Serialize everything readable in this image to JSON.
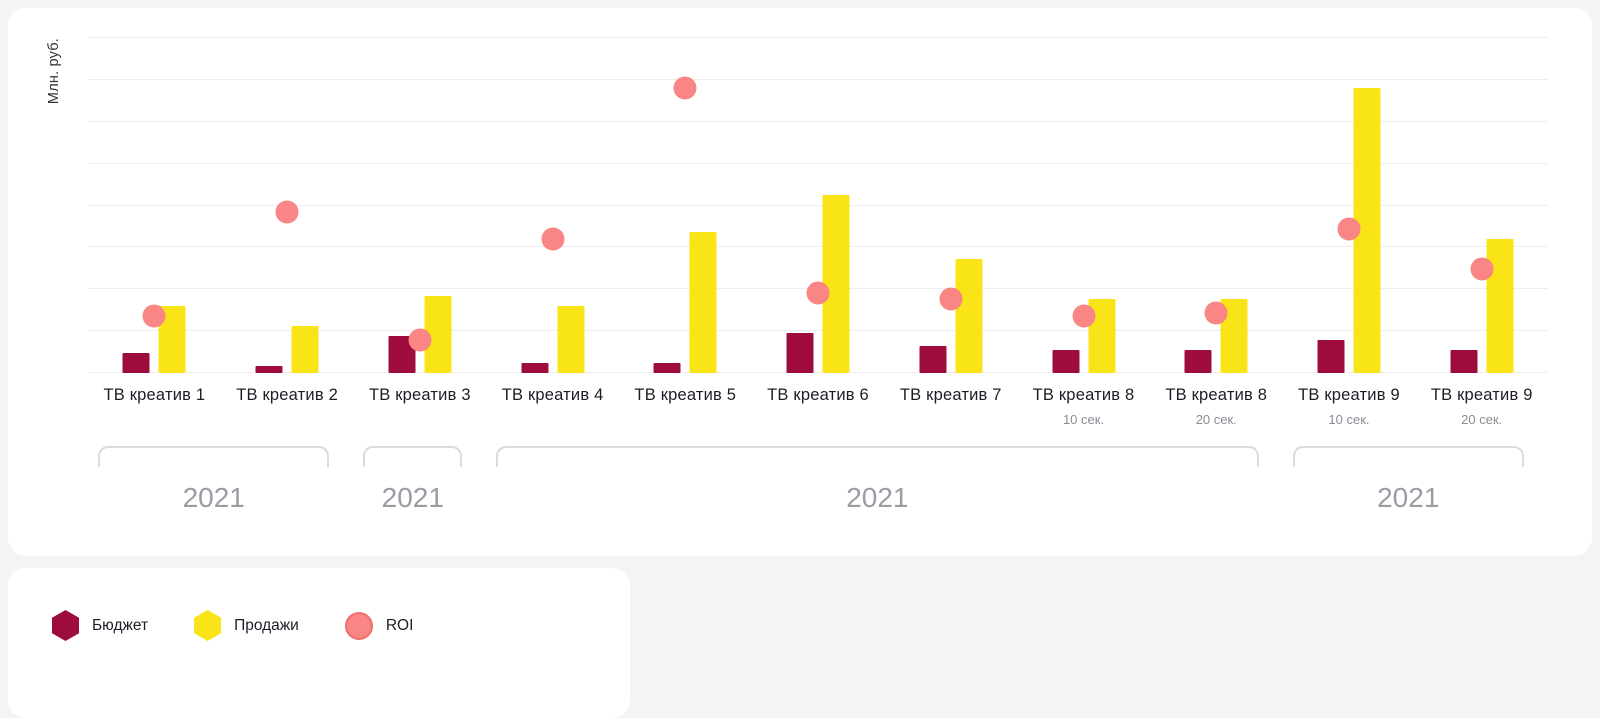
{
  "chart_data": {
    "type": "bar",
    "title": "",
    "xlabel": "",
    "ylabel": "Млн. руб.",
    "ylim": [
      0,
      100
    ],
    "grid": true,
    "gridline_step": 12.5,
    "legend_position": "bottom-left",
    "categories": [
      "ТВ креатив 1",
      "ТВ креатив 2",
      "ТВ креатив 3",
      "ТВ креатив 4",
      "ТВ креатив 5",
      "ТВ креатив 6",
      "ТВ креатив 7",
      "ТВ креатив 8",
      "ТВ креатив 8",
      "ТВ креатив 9",
      "ТВ креатив 9"
    ],
    "sublabels": [
      "",
      "",
      "",
      "",
      "",
      "",
      "",
      "10 сек.",
      "20 сек.",
      "10 сек.",
      "20 сек."
    ],
    "series": [
      {
        "name": "Бюджет",
        "type": "bar",
        "color": "#9e0b3d",
        "values": [
          6,
          2,
          11,
          3,
          3,
          12,
          8,
          7,
          7,
          10,
          7
        ]
      },
      {
        "name": "Продажи",
        "type": "bar",
        "color": "#f9e517",
        "values": [
          20,
          14,
          23,
          20,
          42,
          53,
          34,
          22,
          22,
          85,
          40
        ]
      },
      {
        "name": "ROI",
        "type": "scatter",
        "color": "#f98585",
        "values": [
          17,
          48,
          10,
          40,
          85,
          24,
          22,
          17,
          18,
          43,
          31
        ]
      }
    ],
    "groups": [
      {
        "label": "2021",
        "start": 0,
        "end": 1
      },
      {
        "label": "2021",
        "start": 2,
        "end": 2
      },
      {
        "label": "2021",
        "start": 3,
        "end": 8
      },
      {
        "label": "2021",
        "start": 9,
        "end": 10
      }
    ]
  },
  "legend": {
    "items": [
      {
        "key": "budget",
        "label": "Бюджет",
        "marker": "hexagon",
        "color": "#9e0b3d",
        "border": ""
      },
      {
        "key": "sales",
        "label": "Продажи",
        "marker": "hexagon",
        "color": "#f9e517",
        "border": ""
      },
      {
        "key": "roi",
        "label": "ROI",
        "marker": "circle",
        "color": "#f98585",
        "border": "#ef6f6f"
      }
    ]
  },
  "colors": {
    "background": "#f4f4f7",
    "card": "#ffffff",
    "gridline": "#ededf1",
    "budget": "#9e0b3d",
    "sales": "#f9e517",
    "roi": "#f98585",
    "category_text": "#1d1d26",
    "muted_text": "#8b8b95",
    "group_text": "#9b9ba5",
    "bracket": "#dadae0"
  }
}
